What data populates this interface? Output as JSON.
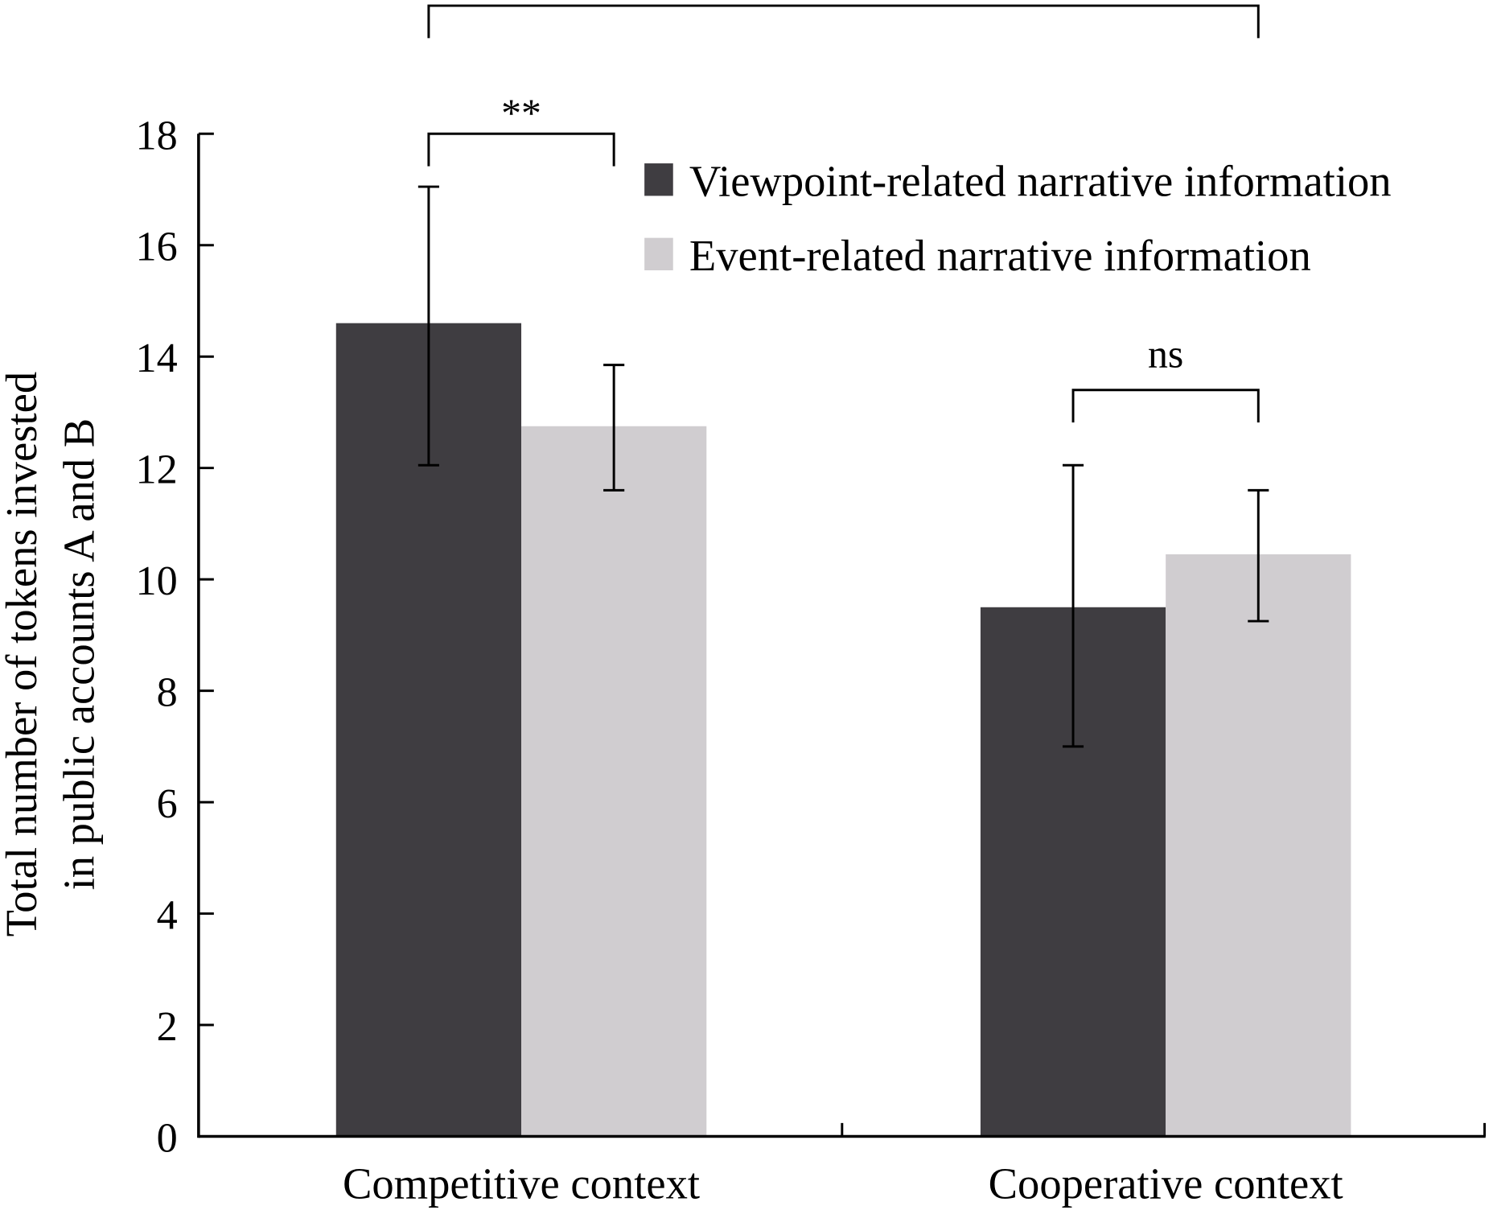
{
  "chart_data": {
    "type": "bar",
    "title": "",
    "xlabel": "",
    "ylabel_lines": [
      "Total number of tokens invested",
      "in public accounts A and B"
    ],
    "ylim": [
      0,
      18
    ],
    "yticks": [
      0,
      2,
      4,
      6,
      8,
      10,
      12,
      14,
      16,
      18
    ],
    "categories": [
      "Competitive context",
      "Cooperative context"
    ],
    "series": [
      {
        "name": "Viewpoint-related narrative information",
        "color": "#3f3d41",
        "values": [
          14.6,
          9.5
        ],
        "error_low": [
          12.05,
          7.0
        ],
        "error_high": [
          17.05,
          12.05
        ]
      },
      {
        "name": "Event-related narrative information",
        "color": "#d0cdd0",
        "values": [
          12.75,
          10.45
        ],
        "error_low": [
          11.6,
          9.25
        ],
        "error_high": [
          13.85,
          11.6
        ]
      }
    ],
    "legend_position": "top-right",
    "grid": false,
    "annotations": [
      {
        "label": "**",
        "from": [
          0,
          0
        ],
        "to": [
          0,
          1
        ],
        "level": 18.0
      },
      {
        "label": "***",
        "from": [
          0,
          0
        ],
        "to": [
          1,
          1
        ],
        "level": 20.3
      },
      {
        "label": "ns",
        "from": [
          1,
          0
        ],
        "to": [
          1,
          1
        ],
        "level": 13.4
      }
    ]
  }
}
